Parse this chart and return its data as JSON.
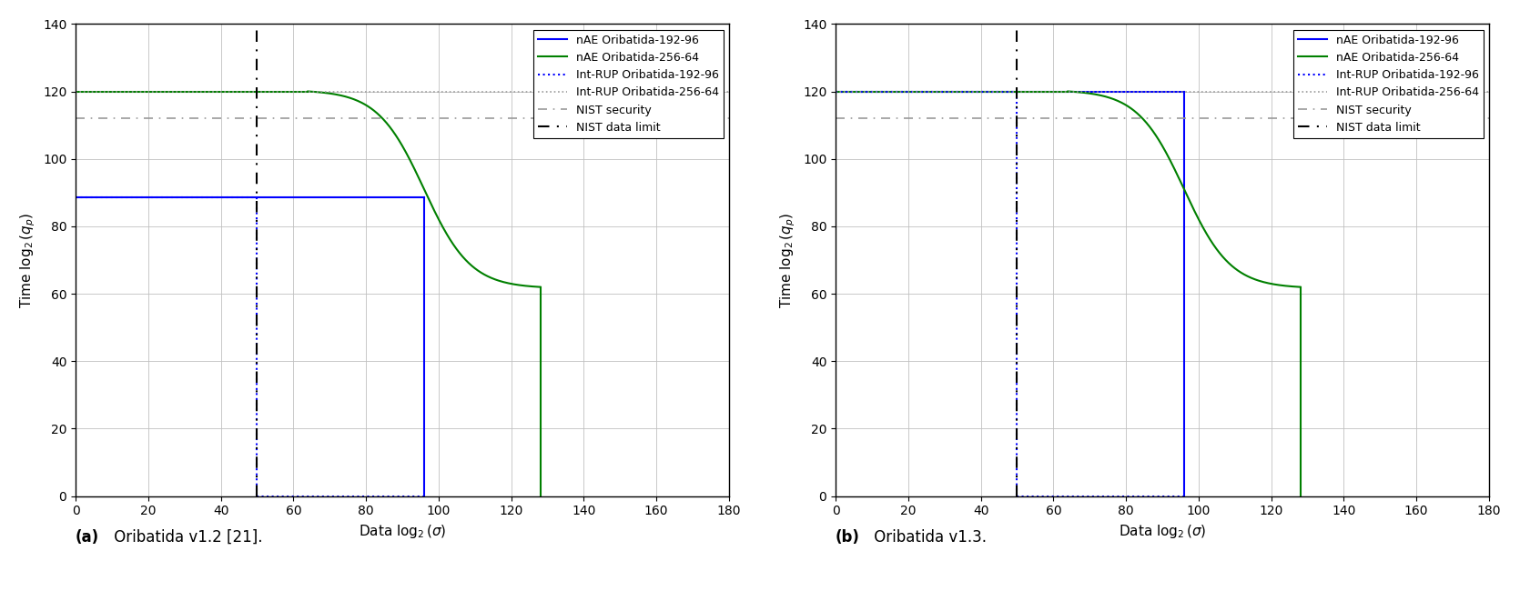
{
  "subplot_titles_bold": [
    "(a)",
    "(b)"
  ],
  "subplot_titles_normal": [
    " Oribatida v1.2 [21].",
    " Oribatida v1.3."
  ],
  "xlabel": "Data $\\log_2(\\sigma)$",
  "ylabel": "Time $\\log_2(q_p)$",
  "xlim": [
    0,
    180
  ],
  "ylim": [
    0,
    140
  ],
  "xticks": [
    0,
    20,
    40,
    60,
    80,
    100,
    120,
    140,
    160,
    180
  ],
  "yticks": [
    0,
    20,
    40,
    60,
    80,
    100,
    120,
    140
  ],
  "nist_security": 112,
  "nist_data_limit": 50,
  "legend_labels": [
    "nAE Oribatida-192-96",
    "nAE Oribatida-256-64",
    "Int-RUP Oribatida-192-96",
    "Int-RUP Oribatida-256-64",
    "NIST security",
    "NIST data limit"
  ],
  "colors": {
    "blue": "#0000ff",
    "green": "#008000",
    "gray": "#999999",
    "black": "#000000"
  },
  "chart_a": {
    "nAE_192_96_y": 88.5,
    "nAE_192_96_drop_x": 96,
    "nAE_256_64_flat_y": 120,
    "nAE_256_64_curve_start_x": 64,
    "nAE_256_64_curve_end_x": 128,
    "nAE_256_64_end_y": 62,
    "nAE_256_64_drop_x": 128,
    "IntRUP_192_96_y": 88.5,
    "IntRUP_192_96_drop_x": 50,
    "IntRUP_192_96_end_x": 96,
    "IntRUP_256_64_y": 120
  },
  "chart_b": {
    "nAE_192_96_y": 120,
    "nAE_192_96_drop_x": 96,
    "nAE_256_64_flat_y": 120,
    "nAE_256_64_curve_start_x": 64,
    "nAE_256_64_curve_end_x": 128,
    "nAE_256_64_end_y": 62,
    "nAE_256_64_drop_x": 128,
    "IntRUP_192_96_y": 120,
    "IntRUP_192_96_drop_x": 50,
    "IntRUP_192_96_end_x": 96,
    "IntRUP_256_64_y": 120
  }
}
